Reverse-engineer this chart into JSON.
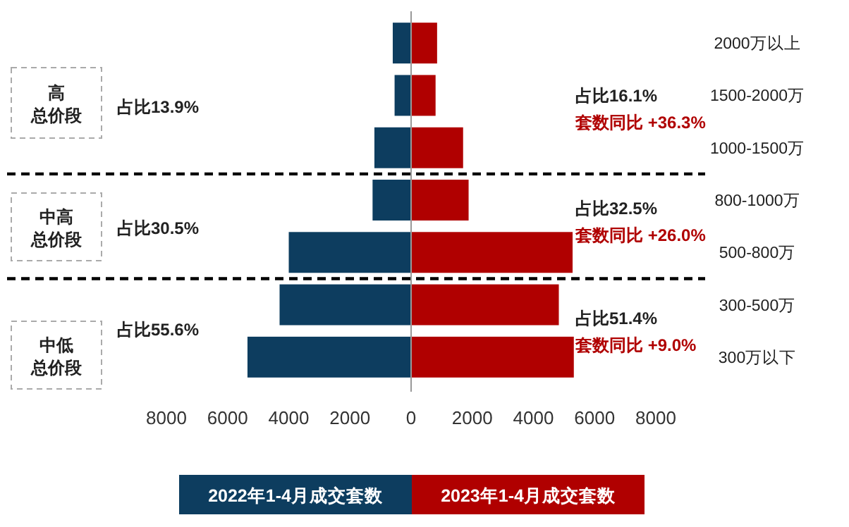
{
  "chart_data": {
    "type": "bar",
    "orientation": "horizontal",
    "stacked": true,
    "categories": [
      "2000万以上",
      "1500-2000万",
      "1000-1500万",
      "800-1000万",
      "500-800万",
      "300-500万",
      "300万以下"
    ],
    "series": [
      {
        "name": "2022年1-4月成交套数",
        "color": "#0d3d5f",
        "values": [
          -600,
          -540,
          -1200,
          -1260,
          -4000,
          -4300,
          -5350
        ]
      },
      {
        "name": "2023年1-4月成交套数",
        "color": "#b00000",
        "values": [
          850,
          800,
          1700,
          1880,
          5280,
          4830,
          5320
        ]
      }
    ],
    "xlim": [
      -8000,
      8000
    ],
    "xticks": [
      {
        "value": -8000,
        "label": "8000"
      },
      {
        "value": -6000,
        "label": "6000"
      },
      {
        "value": -4000,
        "label": "4000"
      },
      {
        "value": -2000,
        "label": "2000"
      },
      0,
      2000,
      4000,
      6000,
      8000
    ],
    "annotations": [
      "高",
      "总价段",
      "中高",
      "总价段",
      "中低",
      "总价段",
      "占比13.9%",
      "占比30.5%",
      "占比55.6%",
      "占比16.1%",
      "套数同比 +36.3%",
      "占比32.5%",
      "套数同比 +26.0%",
      "占比51.4%",
      "套数同比 +9.0%"
    ],
    "legend": "bottom",
    "grid": false
  }
}
